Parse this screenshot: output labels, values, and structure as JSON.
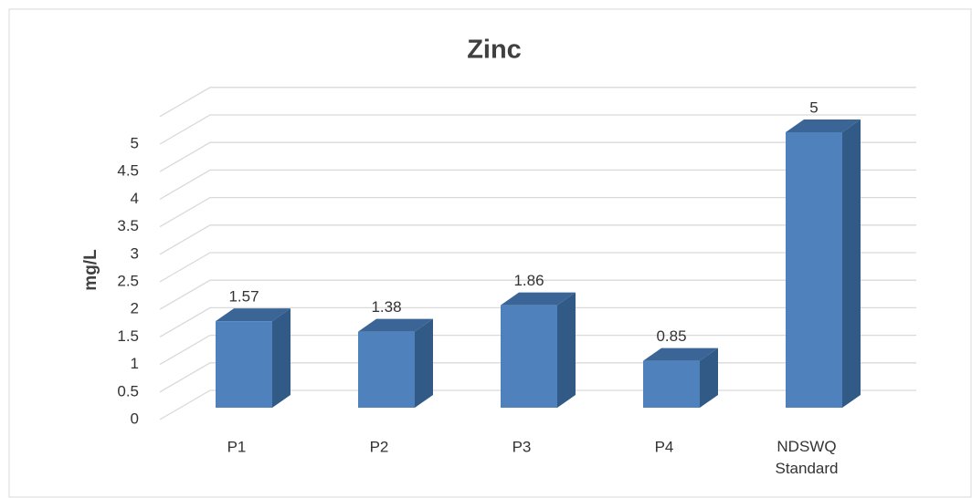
{
  "chart_data": {
    "type": "bar3d",
    "title": "Zinc",
    "y_axis_label": "mg/L",
    "categories": [
      "P1",
      "P2",
      "P3",
      "P4",
      "NDSWQ Standard"
    ],
    "values": [
      1.57,
      1.38,
      1.86,
      0.85,
      5
    ],
    "color": "#4f81bd",
    "ylim": [
      0,
      5.5
    ],
    "yticks": [
      0,
      0.5,
      1,
      1.5,
      2,
      2.5,
      3,
      3.5,
      4,
      4.5,
      5
    ],
    "grid": true
  }
}
